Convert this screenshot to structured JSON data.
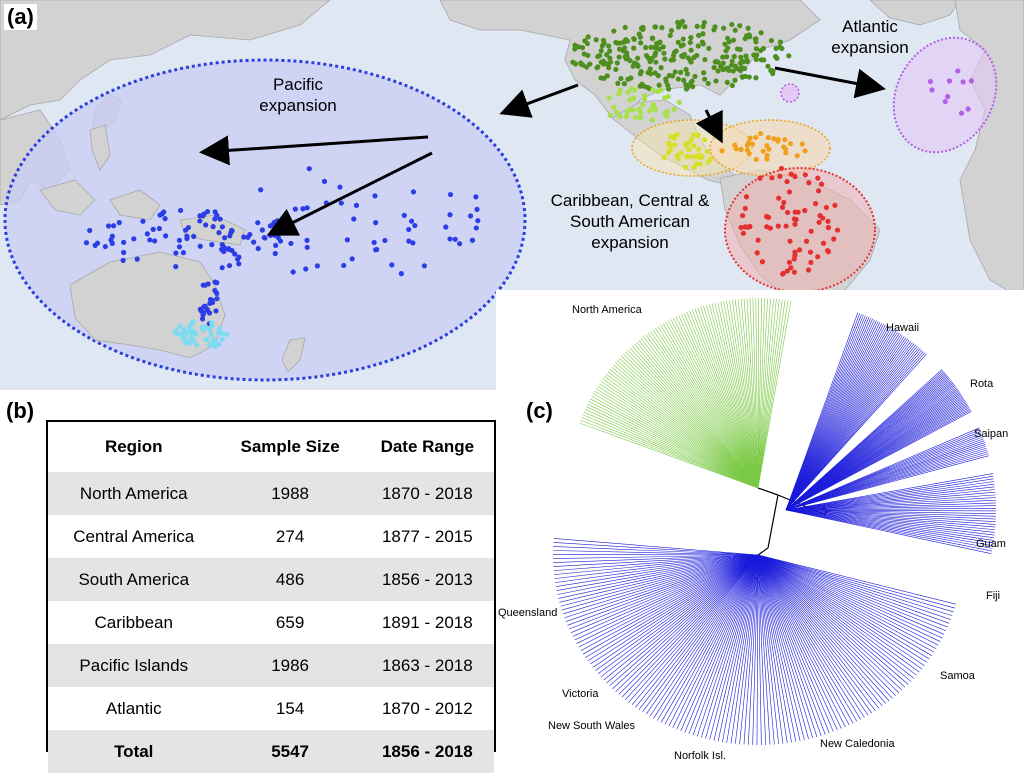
{
  "panels": {
    "a": "(a)",
    "b": "(b)",
    "c": "(c)"
  },
  "map": {
    "pacific_label": [
      "Pacific",
      "expansion"
    ],
    "atlantic_label": [
      "Atlantic",
      "expansion"
    ],
    "caribbean_label": [
      "Caribbean, Central &",
      "South American",
      "expansion"
    ],
    "colors": {
      "ocean": "#dfe7f3",
      "land": "#d2d2d2",
      "pacific_region": "#c9cdf4",
      "pacific_border": "#2b3ee0",
      "atlantic": "#b45ee6",
      "north_america": "#4e8f1f",
      "mexico": "#a8e04a",
      "central_america": "#d7df26",
      "caribbean": "#f0a11c",
      "south_america": "#e53030",
      "queensland": "#7fdcf0",
      "pacific_points": "#2c3de6"
    }
  },
  "table": {
    "headers": [
      "Region",
      "Sample Size",
      "Date Range"
    ],
    "rows": [
      [
        "North America",
        "1988",
        "1870 - 2018"
      ],
      [
        "Central America",
        "274",
        "1877 - 2015"
      ],
      [
        "South America",
        "486",
        "1856 - 2013"
      ],
      [
        "Caribbean",
        "659",
        "1891 - 2018"
      ],
      [
        "Pacific Islands",
        "1986",
        "1863 - 2018"
      ],
      [
        "Atlantic",
        "154",
        "1870 - 2012"
      ]
    ],
    "total": [
      "Total",
      "5547",
      "1856 - 2018"
    ]
  },
  "tree": {
    "labels": {
      "north_america": "North America",
      "hawaii": "Hawaii",
      "rota": "Rota",
      "saipan": "Saipan",
      "guam": "Guam",
      "fiji": "Fiji",
      "samoa": "Samoa",
      "queensland": "Queensland",
      "victoria": "Victoria",
      "nsw": "New South Wales",
      "norfolk": "Norfolk Isl.",
      "new_caledonia": "New Caledonia"
    },
    "colors": {
      "north_america": "#7ac943",
      "pacific": "#1a1adb",
      "backbone": "#000000"
    }
  }
}
